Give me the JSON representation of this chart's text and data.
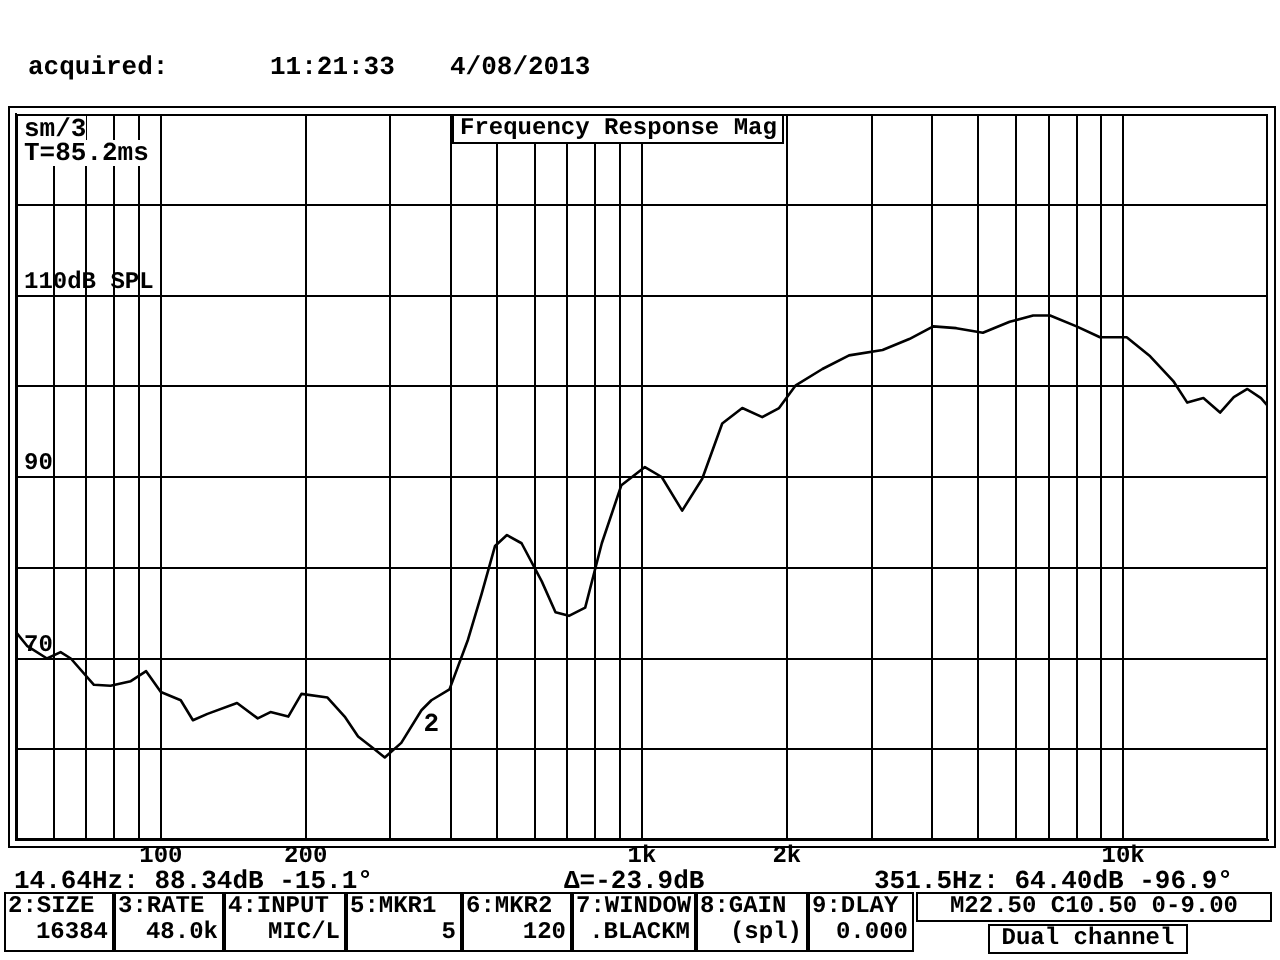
{
  "chart_data": {
    "type": "line",
    "title": "Frequency Response Mag",
    "annotations": [
      "acquired:",
      "11:21:33",
      "4/08/2013",
      "sm/3",
      "T=85.2ms",
      "14.64Hz: 88.34dB -15.1°",
      "Δ=-23.9dB",
      "351.5Hz: 64.40dB -96.9°",
      "2:SIZE",
      "16384",
      "3:RATE",
      "48.0k",
      "4:INPUT",
      "MIC/L",
      "5:MKR1",
      "5",
      "6:MKR2",
      "120",
      "7:WINDOW",
      ".BLACKM",
      "8:GAIN",
      "(spl)",
      "9:DLAY",
      "0.000",
      "M22.50 C10.50 0-9.00",
      "Dual channel",
      {
        "text": "2",
        "x": 351.5,
        "y": 64.4
      }
    ],
    "series": [
      {
        "color": "#000000",
        "x": [
          50,
          52.7,
          58,
          61.9,
          65,
          72.6,
          78.6,
          86.6,
          93.2,
          100,
          110,
          116.6,
          125,
          144,
          159,
          169,
          184,
          196,
          222,
          241,
          257,
          278,
          292,
          316,
          348,
          365,
          398,
          435,
          464,
          495,
          524,
          562,
          619,
          661,
          705,
          762,
          825,
          906,
          1014,
          1099,
          1212,
          1334,
          1468,
          1616,
          1778,
          1927,
          2087,
          2371,
          2694,
          3162,
          3593,
          4030,
          4500,
          5110,
          5810,
          6500,
          7050,
          8000,
          8950,
          10170,
          11380,
          12740,
          13590,
          14680,
          15900,
          16980,
          18120,
          19340,
          20000
        ],
        "values": [
          72.9,
          71.4,
          70.0,
          70.7,
          70.0,
          67.1,
          67.0,
          67.5,
          68.6,
          66.3,
          65.4,
          63.2,
          63.9,
          65.1,
          63.4,
          64.1,
          63.6,
          66.1,
          65.7,
          63.6,
          61.4,
          60.0,
          59.1,
          60.7,
          64.3,
          65.4,
          66.6,
          72.1,
          77.1,
          82.4,
          83.6,
          82.7,
          78.5,
          75.1,
          74.7,
          75.6,
          82.7,
          89.1,
          91.1,
          90.0,
          86.3,
          89.8,
          95.9,
          97.6,
          96.6,
          97.6,
          100.1,
          101.9,
          103.4,
          104.0,
          105.2,
          106.6,
          106.4,
          105.9,
          107.1,
          107.8,
          107.8,
          106.6,
          105.4,
          105.4,
          103.3,
          100.5,
          98.2,
          98.7,
          97.1,
          98.8,
          99.7,
          98.7,
          97.8
        ]
      }
    ],
    "log": "x",
    "xlim": [
      50,
      20000
    ],
    "xticks": [
      {
        "value": 60,
        "label": null
      },
      {
        "value": 70,
        "label": null
      },
      {
        "value": 80,
        "label": null
      },
      {
        "value": 90,
        "label": null
      },
      100,
      200,
      {
        "value": 300,
        "label": null
      },
      {
        "value": 400,
        "label": null
      },
      {
        "value": 500,
        "label": null
      },
      {
        "value": 600,
        "label": null
      },
      {
        "value": 700,
        "label": null
      },
      {
        "value": 800,
        "label": null
      },
      {
        "value": 900,
        "label": null
      },
      {
        "value": 1000,
        "label": "1k"
      },
      {
        "value": 2000,
        "label": "2k"
      },
      {
        "value": 3000,
        "label": null
      },
      {
        "value": 4000,
        "label": null
      },
      {
        "value": 5000,
        "label": null
      },
      {
        "value": 6000,
        "label": null
      },
      {
        "value": 7000,
        "label": null
      },
      {
        "value": 8000,
        "label": null
      },
      {
        "value": 9000,
        "label": null
      },
      {
        "value": 10000,
        "label": "10k"
      }
    ],
    "ylim": [
      50,
      130
    ],
    "yticks": [
      {
        "value": 60,
        "label": null
      },
      70,
      {
        "value": 80,
        "label": null
      },
      90,
      {
        "value": 100,
        "label": null
      },
      {
        "value": 110,
        "label": "110dB SPL"
      },
      {
        "value": 120,
        "label": null
      }
    ],
    "grid": true,
    "legend": false,
    "marker": "none",
    "line_style": "solid"
  }
}
